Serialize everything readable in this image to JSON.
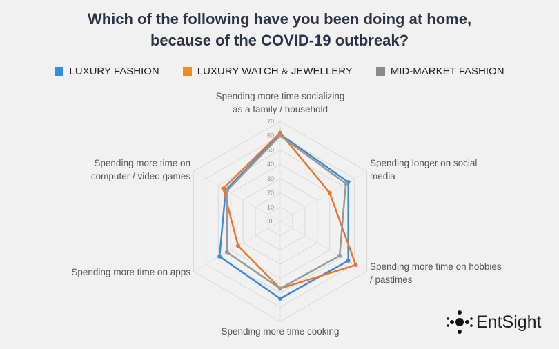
{
  "chart_data": {
    "type": "radar",
    "title_lines": [
      "Which of the following have you been doing at home,",
      "because of the COVID-19 outbreak?"
    ],
    "categories": [
      [
        "Spending more time socializing",
        "as a family / household"
      ],
      [
        "Spending longer on social",
        "media"
      ],
      [
        "Spending more time on hobbies",
        "/ pastimes"
      ],
      [
        "Spending more time cooking"
      ],
      [
        "Spending more time on apps"
      ],
      [
        "Spending more time on",
        "computer / video games"
      ]
    ],
    "radial_ticks": [
      "0",
      "10",
      "20",
      "30",
      "40",
      "50",
      "60",
      "70"
    ],
    "rmax": 70,
    "legend_position": "top",
    "series": [
      {
        "name": "LUXURY FASHION",
        "color": "#3d8ad6",
        "values": [
          61,
          55,
          55,
          54,
          49,
          44
        ]
      },
      {
        "name": "LUXURY WATCH & JEWELLERY",
        "color": "#e8762b",
        "values": [
          62,
          40,
          61,
          47,
          34,
          46
        ]
      },
      {
        "name": "MID-MARKET FASHION",
        "color": "#999999",
        "values": [
          60,
          53,
          48,
          47,
          43,
          43
        ]
      }
    ]
  },
  "logo": {
    "text": "EntSight"
  }
}
